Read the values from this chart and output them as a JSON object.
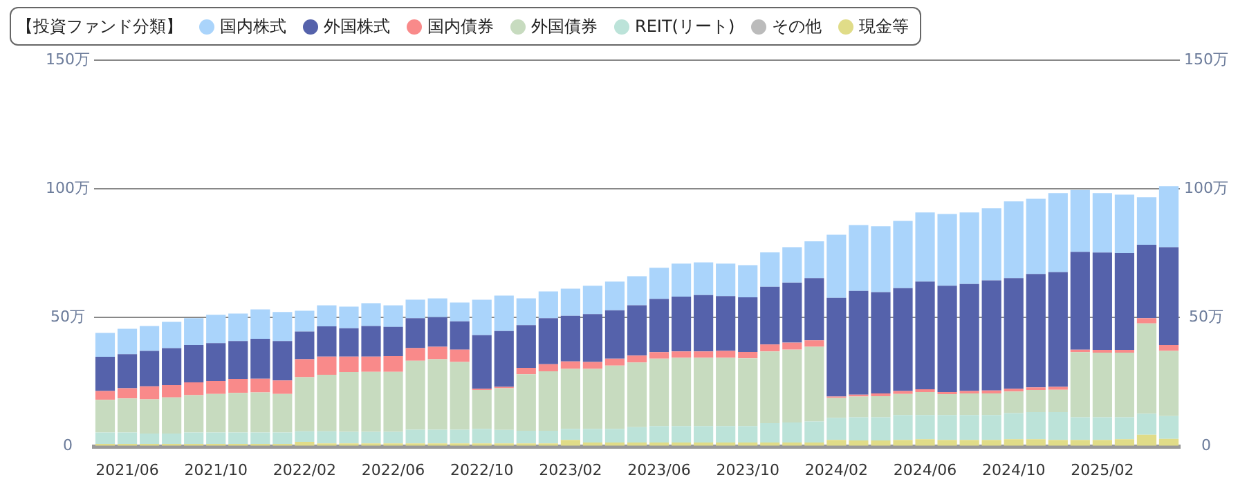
{
  "chart_data": {
    "type": "bar",
    "stacked": true,
    "legend_title": "【投資ファンド分類】",
    "legend": "top left",
    "grid": "y",
    "categories": [
      null,
      "2021/06",
      null,
      null,
      null,
      "2021/10",
      null,
      null,
      null,
      "2022/02",
      null,
      null,
      null,
      "2022/06",
      null,
      null,
      null,
      "2022/10",
      null,
      null,
      null,
      "2023/02",
      null,
      null,
      null,
      "2023/06",
      null,
      null,
      null,
      "2023/10",
      null,
      null,
      null,
      "2024/02",
      null,
      null,
      null,
      "2024/06",
      null,
      null,
      null,
      "2024/10",
      null,
      null,
      null,
      "2025/02",
      null,
      null,
      null
    ],
    "ylim": [
      0,
      150
    ],
    "yticks": [
      0,
      {
        "value": 50,
        "label": "50万"
      },
      {
        "value": 100,
        "label": "100万"
      },
      {
        "value": 150,
        "label": "150万"
      }
    ],
    "y2lim": [
      0,
      150
    ],
    "y2ticks": [
      0,
      {
        "value": 50,
        "label": "50万"
      },
      {
        "value": 100,
        "label": "100万"
      },
      {
        "value": 150,
        "label": "150万"
      }
    ],
    "series": [
      {
        "name": "現金等",
        "color": "#e0dc88",
        "values": [
          1.0,
          1.0,
          1.0,
          1.0,
          1.0,
          1.0,
          1.0,
          1.0,
          1.0,
          1.8,
          1.2,
          1.2,
          1.2,
          1.2,
          1.2,
          1.2,
          1.2,
          1.2,
          1.2,
          1.2,
          1.2,
          2.5,
          1.5,
          1.5,
          1.5,
          1.5,
          1.5,
          1.5,
          1.5,
          1.5,
          1.5,
          1.5,
          1.5,
          2.5,
          2.3,
          2.3,
          2.5,
          2.8,
          2.5,
          2.5,
          2.5,
          2.8,
          2.8,
          2.5,
          2.5,
          2.5,
          2.8,
          4.5,
          2.9
        ]
      },
      {
        "name": "その他",
        "color": "#bbbbbb",
        "values": [
          0,
          0,
          0,
          0,
          0,
          0,
          0,
          0,
          0,
          0,
          0,
          0,
          0,
          0,
          0,
          0,
          0,
          0,
          0,
          0,
          0,
          0,
          0,
          0,
          0,
          0,
          0,
          0,
          0,
          0,
          0,
          0,
          0,
          0,
          0,
          0,
          0,
          0,
          0,
          0,
          0,
          0,
          0,
          0,
          0,
          0,
          0,
          0,
          0
        ]
      },
      {
        "name": "REIT(リート)",
        "color": "#bce3d9",
        "values": [
          4.4,
          4.4,
          4.0,
          4.0,
          4.4,
          4.4,
          4.4,
          4.4,
          4.4,
          4.1,
          4.7,
          4.5,
          4.5,
          4.5,
          5.3,
          5.3,
          5.3,
          5.6,
          5.2,
          4.9,
          4.9,
          4.3,
          5.3,
          5.3,
          6.0,
          6.4,
          6.4,
          6.4,
          6.4,
          6.4,
          7.5,
          7.8,
          8.2,
          8.6,
          9.0,
          9.0,
          9.7,
          9.4,
          9.7,
          9.7,
          9.7,
          10.1,
          10.5,
          10.8,
          8.8,
          8.8,
          8.5,
          8.2,
          8.9
        ]
      },
      {
        "name": "外国債券",
        "color": "#c7dbbf",
        "values": [
          12.7,
          13.2,
          13.3,
          14.0,
          14.5,
          15.0,
          15.4,
          15.6,
          15.0,
          21.0,
          21.9,
          23.2,
          23.3,
          23.3,
          26.8,
          27.4,
          26.3,
          15.1,
          16.2,
          21.9,
          23.1,
          23.3,
          23.3,
          24.6,
          25.1,
          26.2,
          26.5,
          26.5,
          26.5,
          26.3,
          27.9,
          28.3,
          29.0,
          7.7,
          8.1,
          8.2,
          8.2,
          8.9,
          8.1,
          8.4,
          8.4,
          8.4,
          8.6,
          8.7,
          25.3,
          25.1,
          25.1,
          35.1,
          25.3
        ]
      },
      {
        "name": "国内債券",
        "color": "#f98a8a",
        "values": [
          3.4,
          4.0,
          5.0,
          4.8,
          5.0,
          5.0,
          5.4,
          5.3,
          5.2,
          7.0,
          7.1,
          6.0,
          5.9,
          6.1,
          4.9,
          4.8,
          4.8,
          0.5,
          0.5,
          2.5,
          2.7,
          2.9,
          2.7,
          2.7,
          2.7,
          2.5,
          2.5,
          2.5,
          2.7,
          2.5,
          2.7,
          2.7,
          2.5,
          0.6,
          0.7,
          1.1,
          1.1,
          1.1,
          0.8,
          0.9,
          1.1,
          1.1,
          1.0,
          1.1,
          1.0,
          1.1,
          1.1,
          2.0,
          2.3
        ]
      },
      {
        "name": "外国株式",
        "color": "#5562ab",
        "values": [
          13.3,
          13.2,
          13.8,
          14.4,
          14.5,
          14.7,
          14.7,
          15.5,
          15.3,
          10.7,
          11.7,
          11.0,
          11.9,
          11.3,
          11.6,
          11.5,
          11.0,
          20.8,
          21.7,
          16.6,
          17.9,
          17.7,
          18.6,
          18.8,
          19.5,
          20.7,
          21.3,
          21.9,
          21.3,
          21.2,
          22.4,
          23.3,
          24.2,
          38.3,
          40.3,
          39.3,
          40.0,
          41.8,
          41.3,
          41.6,
          42.8,
          43.0,
          44.1,
          44.6,
          38.0,
          37.8,
          37.6,
          28.5,
          38.0
        ]
      },
      {
        "name": "国内株式",
        "color": "#aad4fb",
        "values": [
          9.3,
          9.9,
          9.7,
          10.2,
          10.4,
          11.0,
          10.7,
          11.4,
          11.3,
          8.1,
          8.2,
          8.4,
          8.8,
          8.4,
          7.2,
          7.3,
          7.3,
          13.8,
          13.8,
          10.4,
          10.4,
          10.6,
          11.0,
          11.1,
          11.3,
          12.1,
          12.8,
          12.7,
          12.6,
          12.5,
          13.4,
          13.8,
          14.3,
          24.5,
          25.6,
          25.6,
          26.1,
          26.9,
          27.9,
          27.8,
          28.0,
          29.8,
          29.2,
          30.7,
          24.0,
          23.1,
          22.7,
          18.5,
          23.7
        ]
      }
    ]
  }
}
